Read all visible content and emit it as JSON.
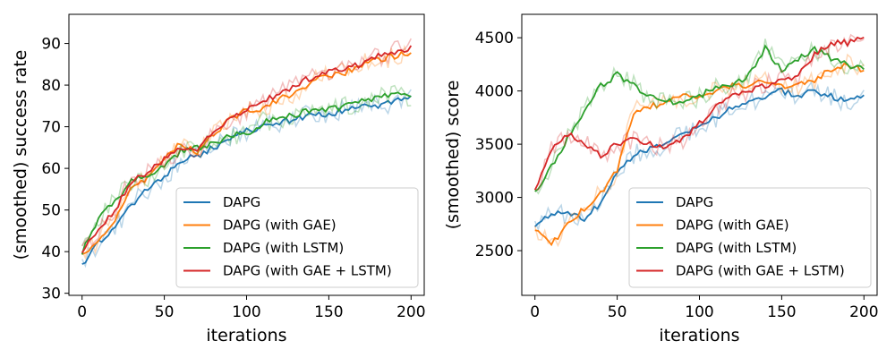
{
  "chart_data": [
    {
      "type": "line",
      "xlabel": "iterations",
      "ylabel": "(smoothed) success rate",
      "xlim": [
        -8,
        208
      ],
      "ylim": [
        29.5,
        97
      ],
      "xticks": [
        0,
        50,
        100,
        150,
        200
      ],
      "yticks": [
        30,
        40,
        50,
        60,
        70,
        80,
        90
      ],
      "legend": "lower-right",
      "grid": false,
      "series": [
        {
          "name": "DAPG",
          "color": "#1f77b4",
          "x": [
            0,
            10,
            20,
            30,
            40,
            50,
            60,
            70,
            80,
            90,
            100,
            110,
            120,
            130,
            140,
            150,
            160,
            170,
            180,
            190,
            200
          ],
          "values": [
            37,
            42,
            46,
            51,
            55,
            58,
            62,
            63,
            65,
            67,
            69,
            70,
            71,
            72,
            73,
            73,
            74,
            75,
            75,
            76,
            77
          ]
        },
        {
          "name": "DAPG (with GAE)",
          "color": "#ff7f0e",
          "x": [
            0,
            10,
            20,
            30,
            40,
            50,
            60,
            70,
            80,
            90,
            100,
            110,
            120,
            130,
            140,
            150,
            160,
            170,
            180,
            190,
            200
          ],
          "values": [
            39,
            43,
            48,
            55,
            58,
            62,
            66,
            64,
            68,
            72,
            74,
            74,
            77,
            78,
            81,
            82,
            83,
            85,
            86,
            87,
            88
          ]
        },
        {
          "name": "DAPG (with LSTM)",
          "color": "#2ca02c",
          "x": [
            0,
            10,
            20,
            30,
            40,
            50,
            60,
            70,
            80,
            90,
            100,
            110,
            120,
            130,
            140,
            150,
            160,
            170,
            180,
            190,
            200
          ],
          "values": [
            40,
            48,
            52,
            57,
            58,
            61,
            64,
            65,
            66,
            68,
            68,
            71,
            72,
            73,
            74,
            74,
            75,
            76,
            77,
            78,
            77
          ]
        },
        {
          "name": "DAPG (with GAE + LSTM)",
          "color": "#d62728",
          "x": [
            0,
            10,
            20,
            30,
            40,
            50,
            60,
            70,
            80,
            90,
            100,
            110,
            120,
            130,
            140,
            150,
            160,
            170,
            180,
            190,
            200
          ],
          "values": [
            40,
            45,
            50,
            57,
            59,
            62,
            65,
            64,
            69,
            72,
            74,
            76,
            78,
            80,
            82,
            83,
            84,
            85,
            87,
            88,
            89
          ]
        }
      ]
    },
    {
      "type": "line",
      "xlabel": "iterations",
      "ylabel": "(smoothed) score",
      "xlim": [
        -8,
        208
      ],
      "ylim": [
        2080,
        4720
      ],
      "xticks": [
        0,
        50,
        100,
        150,
        200
      ],
      "yticks": [
        2500,
        3000,
        3500,
        4000,
        4500
      ],
      "legend": "lower-right",
      "grid": false,
      "series": [
        {
          "name": "DAPG",
          "color": "#1f77b4",
          "x": [
            0,
            10,
            20,
            30,
            40,
            50,
            60,
            70,
            80,
            90,
            100,
            110,
            120,
            130,
            140,
            150,
            160,
            170,
            180,
            190,
            200
          ],
          "values": [
            2750,
            2850,
            2850,
            2800,
            2950,
            3250,
            3400,
            3450,
            3500,
            3600,
            3650,
            3750,
            3850,
            3900,
            3950,
            4000,
            3950,
            4000,
            3950,
            3900,
            3950
          ]
        },
        {
          "name": "DAPG (with GAE)",
          "color": "#ff7f0e",
          "x": [
            0,
            10,
            20,
            30,
            40,
            50,
            60,
            70,
            80,
            90,
            100,
            110,
            120,
            130,
            140,
            150,
            160,
            170,
            180,
            190,
            200
          ],
          "values": [
            2700,
            2550,
            2750,
            2900,
            3050,
            3250,
            3800,
            3850,
            3900,
            3950,
            3950,
            4000,
            4050,
            4050,
            4100,
            4050,
            4050,
            4100,
            4200,
            4250,
            4200
          ]
        },
        {
          "name": "DAPG (with LSTM)",
          "color": "#2ca02c",
          "x": [
            0,
            10,
            20,
            30,
            40,
            50,
            60,
            70,
            80,
            90,
            100,
            110,
            120,
            130,
            140,
            150,
            160,
            170,
            180,
            190,
            200
          ],
          "values": [
            3050,
            3300,
            3550,
            3800,
            4050,
            4150,
            4050,
            3950,
            3900,
            3900,
            3950,
            4050,
            4050,
            4150,
            4400,
            4200,
            4300,
            4400,
            4300,
            4250,
            4200
          ]
        },
        {
          "name": "DAPG (with GAE + LSTM)",
          "color": "#d62728",
          "x": [
            0,
            10,
            20,
            30,
            40,
            50,
            60,
            70,
            80,
            90,
            100,
            110,
            120,
            130,
            140,
            150,
            160,
            170,
            180,
            190,
            200
          ],
          "values": [
            3050,
            3450,
            3600,
            3500,
            3400,
            3500,
            3550,
            3500,
            3450,
            3550,
            3700,
            3850,
            3950,
            4000,
            4050,
            4100,
            4150,
            4350,
            4450,
            4450,
            4500
          ]
        }
      ]
    }
  ]
}
